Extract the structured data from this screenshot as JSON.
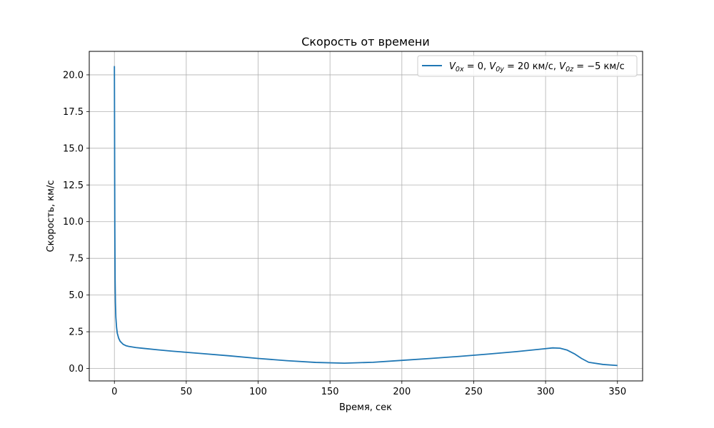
{
  "chart_data": {
    "type": "line",
    "title": "Скорость от времени",
    "xlabel": "Время, сек",
    "ylabel": "Скорость, км/с",
    "xlim": [
      -17.5,
      367.5
    ],
    "ylim": [
      -0.85,
      21.6
    ],
    "x_ticks": [
      0,
      50,
      100,
      150,
      200,
      250,
      300,
      350
    ],
    "x_tick_labels": [
      "0",
      "50",
      "100",
      "150",
      "200",
      "250",
      "300",
      "350"
    ],
    "y_ticks": [
      0.0,
      2.5,
      5.0,
      7.5,
      10.0,
      12.5,
      15.0,
      17.5,
      20.0
    ],
    "y_tick_labels": [
      "0.0",
      "2.5",
      "5.0",
      "7.5",
      "10.0",
      "12.5",
      "15.0",
      "17.5",
      "20.0"
    ],
    "grid": true,
    "legend_position": "upper right",
    "series": [
      {
        "name": "V0x = 0, V0y = 20 км/с, V0z = −5 км/с",
        "legend_parts": {
          "v0x": "V",
          "v0x_sub": "0x",
          "v0x_val": " = 0, ",
          "v0y": "V",
          "v0y_sub": "0y",
          "v0y_val": " = 20 км/с, ",
          "v0z": "V",
          "v0z_sub": "0z",
          "v0z_val": " = −5 км/с"
        },
        "color": "#1f77b4",
        "x": [
          0,
          0.1,
          0.2,
          0.3,
          0.5,
          0.7,
          1,
          1.5,
          2,
          3,
          4,
          5,
          6,
          8,
          10,
          15,
          20,
          30,
          40,
          50,
          60,
          80,
          100,
          120,
          140,
          160,
          180,
          200,
          220,
          240,
          260,
          280,
          300,
          305,
          310,
          315,
          320,
          325,
          330,
          340,
          350
        ],
        "y": [
          20.6,
          17.0,
          13.0,
          9.5,
          6.0,
          4.5,
          3.5,
          2.8,
          2.4,
          2.05,
          1.85,
          1.75,
          1.65,
          1.55,
          1.5,
          1.42,
          1.37,
          1.27,
          1.18,
          1.1,
          1.02,
          0.86,
          0.68,
          0.53,
          0.41,
          0.36,
          0.42,
          0.55,
          0.68,
          0.82,
          0.98,
          1.15,
          1.35,
          1.4,
          1.38,
          1.25,
          1.0,
          0.68,
          0.42,
          0.27,
          0.2
        ]
      }
    ]
  }
}
